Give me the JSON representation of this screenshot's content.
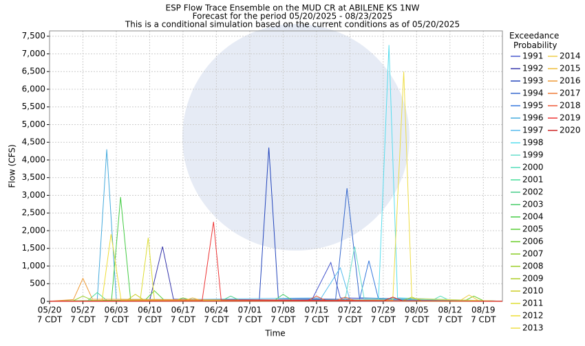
{
  "chart_data": {
    "type": "line",
    "title": "ESP Flow Trace Ensemble on the MUD CR at ABILENE KS 1NW",
    "subtitle": "Forecast for the period 05/20/2025 - 08/23/2025",
    "subtitle2": "This is a conditional simulation based on the current conditions as of 05/20/2025",
    "x_label": "Time",
    "y_label": "Flow (CFS)",
    "legend_title": "Exceedance Probability",
    "xlim": [
      0,
      95
    ],
    "ylim": [
      0,
      7650
    ],
    "xticks": [
      {
        "value": 0,
        "label": "05/20"
      },
      {
        "value": 7,
        "label": "05/27"
      },
      {
        "value": 14,
        "label": "06/03"
      },
      {
        "value": 21,
        "label": "06/10"
      },
      {
        "value": 28,
        "label": "06/17"
      },
      {
        "value": 35,
        "label": "06/24"
      },
      {
        "value": 42,
        "label": "07/01"
      },
      {
        "value": 49,
        "label": "07/08"
      },
      {
        "value": 56,
        "label": "07/15"
      },
      {
        "value": 63,
        "label": "07/22"
      },
      {
        "value": 70,
        "label": "07/29"
      },
      {
        "value": 77,
        "label": "08/05"
      },
      {
        "value": 84,
        "label": "08/12"
      },
      {
        "value": 91,
        "label": "08/19"
      }
    ],
    "xtick_time": "7 CDT",
    "yticks": [
      0,
      500,
      {
        "value": 1000,
        "label": "1,000"
      },
      {
        "value": 1500,
        "label": "1,500"
      },
      {
        "value": 2000,
        "label": "2,000"
      },
      {
        "value": 2500,
        "label": "2,500"
      },
      {
        "value": 3000,
        "label": "3,000"
      },
      {
        "value": 3500,
        "label": "3,500"
      },
      {
        "value": 4000,
        "label": "4,000"
      },
      {
        "value": 4500,
        "label": "4,500"
      },
      {
        "value": 5000,
        "label": "5,000"
      },
      {
        "value": 5500,
        "label": "5,500"
      },
      {
        "value": 6000,
        "label": "6,000"
      },
      {
        "value": 6500,
        "label": "6,500"
      },
      {
        "value": 7000,
        "label": "7,000"
      },
      {
        "value": 7500,
        "label": "7,500"
      }
    ],
    "grid": true,
    "series": [
      {
        "name": "1991",
        "color": "#4455cc",
        "x": [
          0,
          55,
          59,
          61,
          95
        ],
        "values": [
          5,
          40,
          1100,
          100,
          5
        ]
      },
      {
        "name": "1992",
        "color": "#3333aa",
        "x": [
          0,
          21,
          23.7,
          26,
          95
        ],
        "values": [
          5,
          20,
          1550,
          60,
          5
        ]
      },
      {
        "name": "1993",
        "color": "#2244bb",
        "x": [
          0,
          44,
          46,
          48,
          95
        ],
        "values": [
          5,
          30,
          4350,
          80,
          5
        ]
      },
      {
        "name": "1994",
        "color": "#3366cc",
        "x": [
          0,
          60,
          62.4,
          65,
          95
        ],
        "values": [
          5,
          50,
          3200,
          100,
          5
        ]
      },
      {
        "name": "1995",
        "color": "#3377dd",
        "x": [
          0,
          65,
          67,
          69,
          95
        ],
        "values": [
          5,
          40,
          1150,
          60,
          5
        ]
      },
      {
        "name": "1996",
        "color": "#44aadd",
        "x": [
          0,
          10,
          12,
          14,
          95
        ],
        "values": [
          5,
          30,
          4300,
          60,
          5
        ]
      },
      {
        "name": "1997",
        "color": "#55bbee",
        "x": [
          0,
          57,
          61,
          63,
          95
        ],
        "values": [
          5,
          100,
          950,
          50,
          5
        ]
      },
      {
        "name": "1998",
        "color": "#55ddee",
        "x": [
          0,
          69,
          71.2,
          73,
          95
        ],
        "values": [
          5,
          30,
          7250,
          100,
          5
        ]
      },
      {
        "name": "1999",
        "color": "#66ddcc",
        "x": [
          0,
          62,
          64,
          66,
          95
        ],
        "values": [
          5,
          40,
          1550,
          80,
          5
        ]
      },
      {
        "name": "2000",
        "color": "#55ddbb",
        "x": [
          0,
          80,
          82,
          84,
          95
        ],
        "values": [
          5,
          10,
          150,
          20,
          5
        ]
      },
      {
        "name": "2001",
        "color": "#44dd99",
        "x": [
          0,
          8,
          10,
          12,
          95
        ],
        "values": [
          5,
          20,
          250,
          30,
          5
        ]
      },
      {
        "name": "2002",
        "color": "#44cc88",
        "x": [
          0,
          36,
          38,
          40,
          95
        ],
        "values": [
          5,
          10,
          150,
          20,
          5
        ]
      },
      {
        "name": "2003",
        "color": "#44cc66",
        "x": [
          0,
          47,
          49,
          51,
          95
        ],
        "values": [
          5,
          10,
          200,
          20,
          5
        ]
      },
      {
        "name": "2004",
        "color": "#44cc44",
        "x": [
          0,
          13,
          14.9,
          17,
          95
        ],
        "values": [
          5,
          30,
          2950,
          50,
          5
        ]
      },
      {
        "name": "2005",
        "color": "#55cc33",
        "x": [
          0,
          20,
          22,
          24,
          95
        ],
        "values": [
          5,
          30,
          300,
          40,
          5
        ]
      },
      {
        "name": "2006",
        "color": "#66cc22",
        "x": [
          0,
          87,
          89,
          91,
          95
        ],
        "values": [
          5,
          10,
          150,
          20,
          5
        ]
      },
      {
        "name": "2007",
        "color": "#88cc22",
        "x": [
          0,
          26,
          28,
          30,
          95
        ],
        "values": [
          5,
          10,
          100,
          20,
          5
        ]
      },
      {
        "name": "2008",
        "color": "#99cc22",
        "x": [
          0,
          5,
          7,
          9,
          95
        ],
        "values": [
          5,
          20,
          150,
          30,
          5
        ]
      },
      {
        "name": "2009",
        "color": "#aacc22",
        "x": [
          0,
          74,
          76,
          78,
          95
        ],
        "values": [
          5,
          10,
          120,
          20,
          5
        ]
      },
      {
        "name": "2010",
        "color": "#cccc22",
        "x": [
          0,
          16,
          18,
          20,
          95
        ],
        "values": [
          5,
          10,
          200,
          20,
          5
        ]
      },
      {
        "name": "2011",
        "color": "#dddd33",
        "x": [
          0,
          19,
          20.7,
          22,
          95
        ],
        "values": [
          5,
          10,
          1800,
          30,
          5
        ]
      },
      {
        "name": "2012",
        "color": "#eedd33",
        "x": [
          0,
          11,
          12.9,
          15,
          95
        ],
        "values": [
          5,
          20,
          1900,
          40,
          5
        ]
      },
      {
        "name": "2013",
        "color": "#eedd44",
        "x": [
          0,
          72,
          74.3,
          76,
          95
        ],
        "values": [
          5,
          40,
          6500,
          80,
          5
        ]
      },
      {
        "name": "2014",
        "color": "#eecc44",
        "x": [
          0,
          86,
          88,
          90,
          95
        ],
        "values": [
          5,
          10,
          180,
          20,
          5
        ]
      },
      {
        "name": "2015",
        "color": "#eebb33",
        "x": [
          0,
          28,
          30,
          32,
          95
        ],
        "values": [
          5,
          10,
          100,
          20,
          5
        ]
      },
      {
        "name": "2016",
        "color": "#ee9933",
        "x": [
          0,
          5,
          7,
          9,
          95
        ],
        "values": [
          5,
          50,
          650,
          60,
          5
        ]
      },
      {
        "name": "2017",
        "color": "#ee7733",
        "x": [
          0,
          60,
          62,
          64,
          95
        ],
        "values": [
          5,
          10,
          120,
          20,
          5
        ]
      },
      {
        "name": "2018",
        "color": "#ee5533",
        "x": [
          0,
          54,
          56,
          58,
          95
        ],
        "values": [
          5,
          10,
          150,
          20,
          5
        ]
      },
      {
        "name": "2019",
        "color": "#ee3333",
        "x": [
          0,
          32,
          34.4,
          36,
          95
        ],
        "values": [
          5,
          20,
          2250,
          40,
          5
        ]
      },
      {
        "name": "2020",
        "color": "#cc2222",
        "x": [
          0,
          70,
          72,
          74,
          95
        ],
        "values": [
          5,
          10,
          120,
          20,
          5
        ]
      }
    ]
  }
}
